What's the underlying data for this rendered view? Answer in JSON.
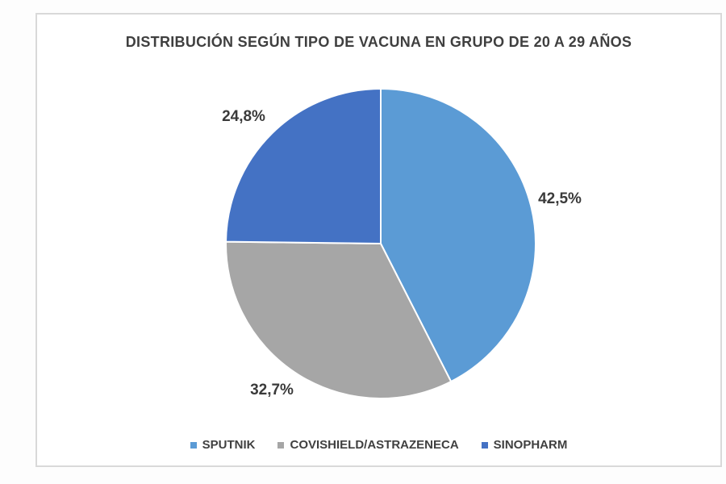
{
  "title": "DISTRIBUCIÓN SEGÚN TIPO DE VACUNA EN GRUPO DE 20 A 29 AÑOS",
  "chart_data": {
    "type": "pie",
    "title": "DISTRIBUCIÓN SEGÚN TIPO DE VACUNA EN GRUPO DE 20 A 29 AÑOS",
    "unit": "%",
    "decimal_separator": ",",
    "start_angle_deg": 0,
    "direction": "clockwise",
    "legend_position": "bottom",
    "slice_separator_color": "#ffffff",
    "background_color": "#ffffff",
    "border_color": "#d9d9d9",
    "text_color": "#3f3f3f",
    "slices": [
      {
        "label": "SPUTNIK",
        "value": 42.5,
        "display": "42,5%",
        "color": "#5B9BD5"
      },
      {
        "label": "COVISHIELD/ASTRAZENECA",
        "value": 32.7,
        "display": "32,7%",
        "color": "#A6A6A6"
      },
      {
        "label": "SINOPHARM",
        "value": 24.8,
        "display": "24,8%",
        "color": "#4472C4"
      }
    ]
  },
  "legend": {
    "items": [
      {
        "label": "SPUTNIK",
        "color": "#5B9BD5"
      },
      {
        "label": "COVISHIELD/ASTRAZENECA",
        "color": "#A6A6A6"
      },
      {
        "label": "SINOPHARM",
        "color": "#4472C4"
      }
    ]
  }
}
